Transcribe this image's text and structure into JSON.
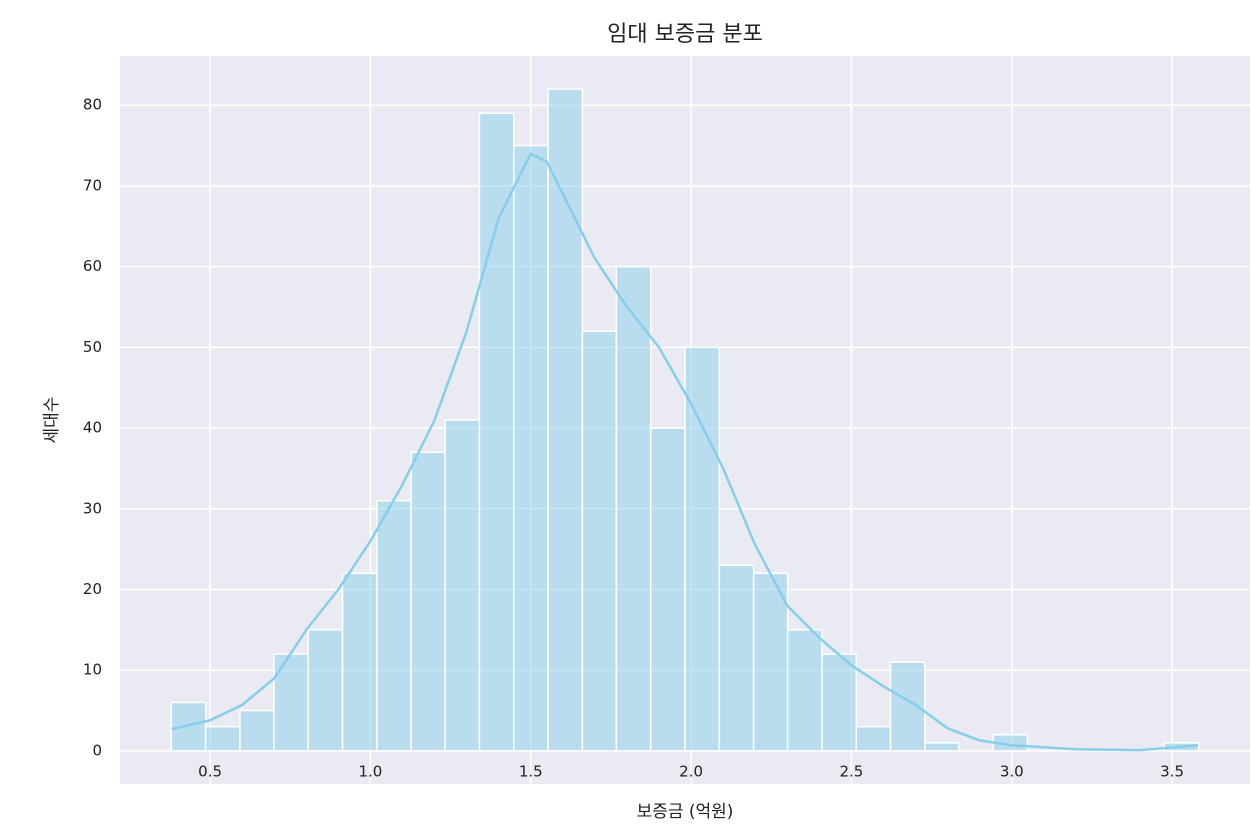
{
  "chart_data": {
    "type": "histogram",
    "title": "임대 보증금 분포",
    "x_label": "보증금 (억원)",
    "y_label": "세대수",
    "bins": [
      0.379,
      0.486,
      0.593,
      0.699,
      0.806,
      0.913,
      1.02,
      1.127,
      1.233,
      1.34,
      1.447,
      1.554,
      1.661,
      1.767,
      1.874,
      1.981,
      2.088,
      2.195,
      2.301,
      2.408,
      2.515,
      2.622,
      2.729,
      2.835,
      2.942,
      3.049,
      3.156,
      3.263,
      3.369,
      3.476,
      3.583
    ],
    "counts": [
      6,
      3,
      5,
      12,
      15,
      22,
      31,
      37,
      41,
      79,
      75,
      82,
      52,
      60,
      40,
      50,
      23,
      22,
      15,
      12,
      3,
      11,
      1,
      0,
      2,
      0,
      0,
      0,
      0,
      1
    ],
    "color": "#87ceeb",
    "kde": {
      "x": [
        0.38,
        0.5,
        0.6,
        0.7,
        0.8,
        0.9,
        1.0,
        1.1,
        1.2,
        1.3,
        1.4,
        1.5,
        1.55,
        1.6,
        1.7,
        1.8,
        1.9,
        2.0,
        2.1,
        2.2,
        2.3,
        2.4,
        2.5,
        2.6,
        2.7,
        2.8,
        2.9,
        3.0,
        3.2,
        3.4,
        3.58
      ],
      "values": [
        2.7,
        3.8,
        5.7,
        9,
        15,
        20,
        26,
        33,
        41,
        52,
        66,
        74,
        73,
        69,
        61,
        55,
        50,
        43,
        35,
        25.5,
        18,
        14,
        10.6,
        8,
        5.7,
        2.8,
        1.3,
        0.7,
        0.2,
        0.1,
        0.7
      ]
    },
    "xlim": [
      0.219,
      3.743
    ],
    "ylim": [
      -4.1,
      86.1
    ],
    "xticks": [
      {
        "value": 0.5,
        "label": "0.5"
      },
      {
        "value": 1,
        "label": "1.0"
      },
      {
        "value": 1.5,
        "label": "1.5"
      },
      {
        "value": 2,
        "label": "2.0"
      },
      {
        "value": 2.5,
        "label": "2.5"
      },
      {
        "value": 3,
        "label": "3.0"
      },
      {
        "value": 3.5,
        "label": "3.5"
      }
    ],
    "yticks": [
      0,
      10,
      20,
      30,
      40,
      50,
      60,
      70,
      80
    ],
    "grid": true
  }
}
